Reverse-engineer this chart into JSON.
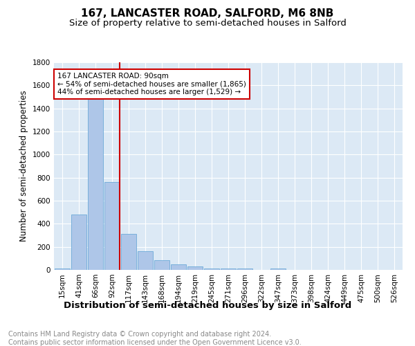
{
  "title_line1": "167, LANCASTER ROAD, SALFORD, M6 8NB",
  "title_line2": "Size of property relative to semi-detached houses in Salford",
  "xlabel": "Distribution of semi-detached houses by size in Salford",
  "ylabel": "Number of semi-detached properties",
  "categories": [
    "15sqm",
    "41sqm",
    "66sqm",
    "92sqm",
    "117sqm",
    "143sqm",
    "168sqm",
    "194sqm",
    "219sqm",
    "245sqm",
    "271sqm",
    "296sqm",
    "322sqm",
    "347sqm",
    "373sqm",
    "398sqm",
    "424sqm",
    "449sqm",
    "475sqm",
    "500sqm",
    "526sqm"
  ],
  "values": [
    10,
    480,
    1500,
    760,
    315,
    160,
    85,
    50,
    30,
    15,
    10,
    10,
    0,
    15,
    0,
    0,
    0,
    0,
    0,
    0,
    0
  ],
  "bar_color": "#aec6e8",
  "bar_edge_color": "#5a9fd4",
  "vline_x_index": 3,
  "vline_color": "#cc0000",
  "annotation_text": "167 LANCASTER ROAD: 90sqm\n← 54% of semi-detached houses are smaller (1,865)\n44% of semi-detached houses are larger (1,529) →",
  "annotation_box_color": "#ffffff",
  "annotation_box_edge_color": "#cc0000",
  "ylim": [
    0,
    1800
  ],
  "yticks": [
    0,
    200,
    400,
    600,
    800,
    1000,
    1200,
    1400,
    1600,
    1800
  ],
  "plot_background_color": "#dce9f5",
  "footer_text": "Contains HM Land Registry data © Crown copyright and database right 2024.\nContains public sector information licensed under the Open Government Licence v3.0.",
  "title_fontsize": 11,
  "subtitle_fontsize": 9.5,
  "xlabel_fontsize": 9.5,
  "ylabel_fontsize": 8.5,
  "tick_fontsize": 7.5,
  "footer_fontsize": 7.0,
  "annot_fontsize": 7.5
}
